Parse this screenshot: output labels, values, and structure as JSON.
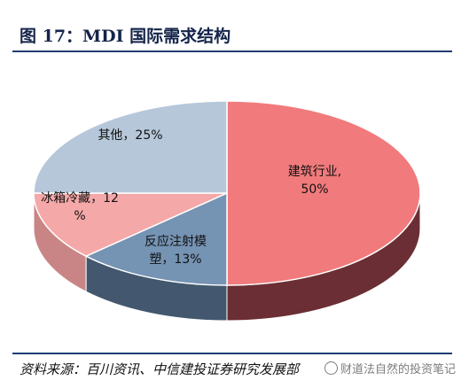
{
  "title": "图 17：MDI 国际需求结构",
  "source": "资料来源：百川资讯、中信建投证券研究发展部",
  "watermark": "财道法自然的投资笔记",
  "chart_data": {
    "type": "pie",
    "title": "",
    "categories": [
      "建筑行业",
      "反应注射模塑",
      "冰箱冷藏",
      "其他"
    ],
    "values": [
      50,
      13,
      12,
      25
    ],
    "labels": [
      "建筑行业,\n50%",
      "反应注射模\n塑，13%",
      "冰箱冷藏，12\n%",
      "其他，25%"
    ],
    "colors": [
      "#f17a7c",
      "#7593b3",
      "#f5a8a8",
      "#b6c7da"
    ],
    "side_colors": [
      "#6b2e34",
      "#43586e",
      "#c98585",
      "#8fa0b3"
    ],
    "style": "3d-tilted",
    "legend": "none"
  }
}
